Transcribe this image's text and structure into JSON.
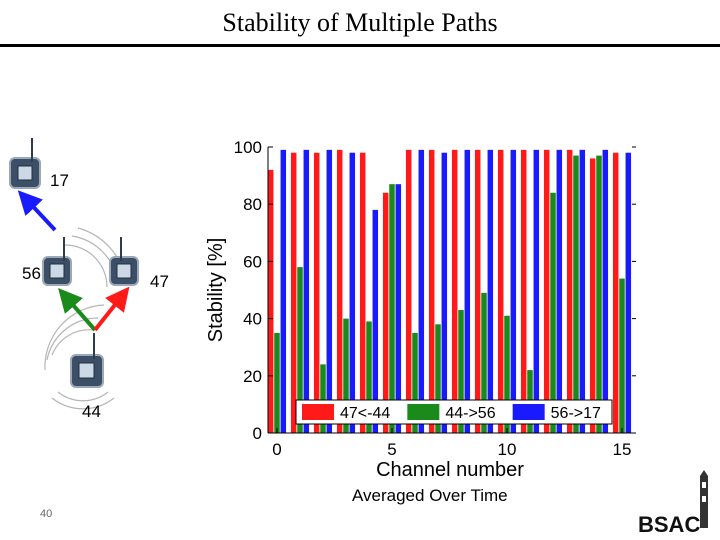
{
  "slide": {
    "title": "Stability of Multiple Paths",
    "page_number": "40",
    "caption": "Averaged Over Time",
    "logo_text": "BSAC"
  },
  "diagram": {
    "nodes": [
      {
        "id": "17",
        "label": "17"
      },
      {
        "id": "56",
        "label": "56"
      },
      {
        "id": "47",
        "label": "47"
      },
      {
        "id": "44",
        "label": "44"
      }
    ],
    "arrows": [
      {
        "from": "56",
        "to": "17",
        "color": "#1a1aff"
      },
      {
        "from": "44",
        "to": "56",
        "color": "#1a8a1a"
      },
      {
        "from": "44",
        "to": "47",
        "color": "#ff1a1a"
      }
    ]
  },
  "chart_data": {
    "type": "bar",
    "xlabel": "Channel number",
    "ylabel": "Stability [%]",
    "ylim": [
      0,
      100
    ],
    "yticks": [
      0,
      20,
      40,
      60,
      80,
      100
    ],
    "xticks": [
      0,
      5,
      10,
      15
    ],
    "categories": [
      0,
      1,
      2,
      3,
      4,
      5,
      6,
      7,
      8,
      9,
      10,
      11,
      12,
      13,
      14,
      15
    ],
    "legend_position": "bottom",
    "series": [
      {
        "name": "47<-44",
        "color": "#ff1a1a",
        "values": [
          92,
          98,
          98,
          99,
          98,
          84,
          99,
          99,
          99,
          99,
          99,
          99,
          99,
          99,
          96,
          98
        ]
      },
      {
        "name": "44->56",
        "color": "#1a8a1a",
        "values": [
          35,
          58,
          24,
          40,
          39,
          87,
          35,
          38,
          43,
          49,
          41,
          22,
          84,
          97,
          97,
          54
        ]
      },
      {
        "name": "56->17",
        "color": "#1a1aff",
        "values": [
          99,
          99,
          99,
          98,
          78,
          87,
          99,
          98,
          99,
          99,
          99,
          99,
          99,
          99,
          99,
          98
        ]
      }
    ]
  }
}
